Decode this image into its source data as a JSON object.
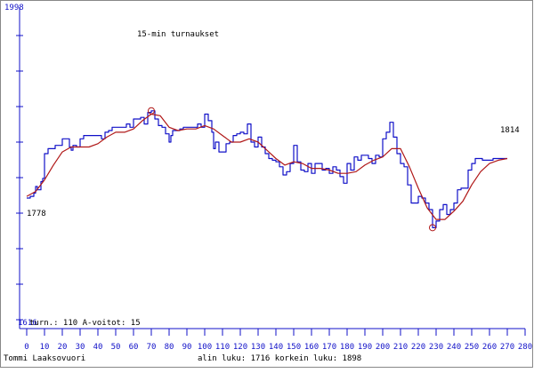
{
  "chart_data": {
    "type": "line",
    "title": "15-min turnaukset",
    "x_ticks": [
      0,
      10,
      20,
      30,
      40,
      50,
      60,
      70,
      80,
      90,
      100,
      110,
      120,
      130,
      140,
      150,
      160,
      170,
      180,
      190,
      200,
      210,
      220,
      230,
      240,
      250,
      260,
      270,
      280
    ],
    "xlim": [
      0,
      280
    ],
    "ylim": [
      1616,
      1998
    ],
    "y_top_label": "1998",
    "y_bottom_label": "1616",
    "series": [
      {
        "color": "#1010c8",
        "points": [
          [
            0,
            1766
          ],
          [
            2,
            1768
          ],
          [
            4,
            1772
          ],
          [
            5,
            1780
          ],
          [
            6,
            1776
          ],
          [
            8,
            1786
          ],
          [
            9,
            1790
          ],
          [
            10,
            1820
          ],
          [
            12,
            1826
          ],
          [
            14,
            1826
          ],
          [
            16,
            1830
          ],
          [
            18,
            1830
          ],
          [
            20,
            1838
          ],
          [
            22,
            1838
          ],
          [
            24,
            1828
          ],
          [
            25,
            1824
          ],
          [
            26,
            1830
          ],
          [
            28,
            1828
          ],
          [
            30,
            1838
          ],
          [
            32,
            1842
          ],
          [
            34,
            1842
          ],
          [
            36,
            1842
          ],
          [
            38,
            1842
          ],
          [
            40,
            1842
          ],
          [
            42,
            1838
          ],
          [
            44,
            1846
          ],
          [
            46,
            1848
          ],
          [
            48,
            1852
          ],
          [
            50,
            1852
          ],
          [
            52,
            1852
          ],
          [
            54,
            1852
          ],
          [
            56,
            1856
          ],
          [
            58,
            1852
          ],
          [
            60,
            1862
          ],
          [
            62,
            1862
          ],
          [
            64,
            1864
          ],
          [
            66,
            1856
          ],
          [
            68,
            1870
          ],
          [
            70,
            1872
          ],
          [
            72,
            1862
          ],
          [
            74,
            1854
          ],
          [
            76,
            1852
          ],
          [
            78,
            1844
          ],
          [
            80,
            1834
          ],
          [
            81,
            1842
          ],
          [
            82,
            1848
          ],
          [
            84,
            1848
          ],
          [
            86,
            1850
          ],
          [
            88,
            1852
          ],
          [
            90,
            1852
          ],
          [
            92,
            1852
          ],
          [
            94,
            1852
          ],
          [
            96,
            1856
          ],
          [
            98,
            1852
          ],
          [
            100,
            1868
          ],
          [
            102,
            1860
          ],
          [
            104,
            1846
          ],
          [
            105,
            1826
          ],
          [
            106,
            1834
          ],
          [
            108,
            1822
          ],
          [
            110,
            1822
          ],
          [
            112,
            1832
          ],
          [
            114,
            1834
          ],
          [
            116,
            1842
          ],
          [
            118,
            1844
          ],
          [
            120,
            1846
          ],
          [
            122,
            1844
          ],
          [
            124,
            1856
          ],
          [
            126,
            1834
          ],
          [
            128,
            1828
          ],
          [
            130,
            1840
          ],
          [
            132,
            1828
          ],
          [
            134,
            1820
          ],
          [
            136,
            1814
          ],
          [
            138,
            1812
          ],
          [
            140,
            1810
          ],
          [
            142,
            1804
          ],
          [
            144,
            1794
          ],
          [
            146,
            1798
          ],
          [
            148,
            1808
          ],
          [
            150,
            1830
          ],
          [
            152,
            1810
          ],
          [
            154,
            1800
          ],
          [
            156,
            1798
          ],
          [
            158,
            1808
          ],
          [
            160,
            1796
          ],
          [
            162,
            1808
          ],
          [
            164,
            1808
          ],
          [
            166,
            1800
          ],
          [
            168,
            1802
          ],
          [
            170,
            1796
          ],
          [
            172,
            1804
          ],
          [
            174,
            1800
          ],
          [
            176,
            1792
          ],
          [
            178,
            1784
          ],
          [
            180,
            1808
          ],
          [
            182,
            1800
          ],
          [
            184,
            1816
          ],
          [
            186,
            1812
          ],
          [
            188,
            1818
          ],
          [
            190,
            1818
          ],
          [
            192,
            1814
          ],
          [
            194,
            1808
          ],
          [
            196,
            1818
          ],
          [
            198,
            1816
          ],
          [
            200,
            1838
          ],
          [
            202,
            1846
          ],
          [
            204,
            1858
          ],
          [
            206,
            1840
          ],
          [
            208,
            1820
          ],
          [
            210,
            1808
          ],
          [
            212,
            1804
          ],
          [
            214,
            1782
          ],
          [
            216,
            1760
          ],
          [
            218,
            1760
          ],
          [
            220,
            1768
          ],
          [
            222,
            1766
          ],
          [
            224,
            1760
          ],
          [
            226,
            1752
          ],
          [
            228,
            1730
          ],
          [
            230,
            1738
          ],
          [
            232,
            1752
          ],
          [
            234,
            1758
          ],
          [
            236,
            1746
          ],
          [
            238,
            1752
          ],
          [
            240,
            1760
          ],
          [
            242,
            1776
          ],
          [
            244,
            1778
          ],
          [
            246,
            1778
          ],
          [
            248,
            1800
          ],
          [
            250,
            1808
          ],
          [
            252,
            1814
          ],
          [
            254,
            1814
          ],
          [
            256,
            1812
          ],
          [
            258,
            1812
          ],
          [
            260,
            1812
          ],
          [
            262,
            1814
          ],
          [
            264,
            1814
          ],
          [
            266,
            1814
          ],
          [
            268,
            1814
          ],
          [
            270,
            1814
          ]
        ]
      },
      {
        "color": "#b01818",
        "points": [
          [
            0,
            1768
          ],
          [
            5,
            1774
          ],
          [
            10,
            1788
          ],
          [
            15,
            1806
          ],
          [
            20,
            1822
          ],
          [
            25,
            1828
          ],
          [
            30,
            1828
          ],
          [
            35,
            1828
          ],
          [
            40,
            1832
          ],
          [
            45,
            1840
          ],
          [
            50,
            1846
          ],
          [
            55,
            1846
          ],
          [
            60,
            1850
          ],
          [
            65,
            1860
          ],
          [
            70,
            1868
          ],
          [
            75,
            1866
          ],
          [
            80,
            1852
          ],
          [
            85,
            1848
          ],
          [
            90,
            1850
          ],
          [
            95,
            1850
          ],
          [
            100,
            1854
          ],
          [
            105,
            1850
          ],
          [
            110,
            1842
          ],
          [
            115,
            1834
          ],
          [
            120,
            1834
          ],
          [
            125,
            1838
          ],
          [
            130,
            1834
          ],
          [
            135,
            1824
          ],
          [
            140,
            1814
          ],
          [
            145,
            1806
          ],
          [
            150,
            1810
          ],
          [
            155,
            1808
          ],
          [
            160,
            1802
          ],
          [
            165,
            1802
          ],
          [
            170,
            1800
          ],
          [
            175,
            1796
          ],
          [
            180,
            1796
          ],
          [
            185,
            1798
          ],
          [
            190,
            1806
          ],
          [
            195,
            1812
          ],
          [
            200,
            1816
          ],
          [
            205,
            1826
          ],
          [
            210,
            1826
          ],
          [
            215,
            1804
          ],
          [
            220,
            1778
          ],
          [
            225,
            1754
          ],
          [
            230,
            1740
          ],
          [
            235,
            1740
          ],
          [
            240,
            1750
          ],
          [
            245,
            1762
          ],
          [
            250,
            1782
          ],
          [
            255,
            1798
          ],
          [
            260,
            1808
          ],
          [
            265,
            1812
          ],
          [
            270,
            1814
          ]
        ]
      }
    ],
    "annotations": [
      {
        "text": "1778",
        "x": 0,
        "y": 1778
      },
      {
        "text": "1814",
        "x": 270,
        "y": 1814
      }
    ],
    "markers": [
      {
        "x": 70,
        "y": 1872
      },
      {
        "x": 228,
        "y": 1730
      }
    ],
    "grid": false
  },
  "footer": {
    "stats_text": "turn.: 110 A-voitot: 15",
    "author": "Tommi Laaksovuori",
    "range_text": "alin luku: 1716  korkein luku: 1898"
  }
}
